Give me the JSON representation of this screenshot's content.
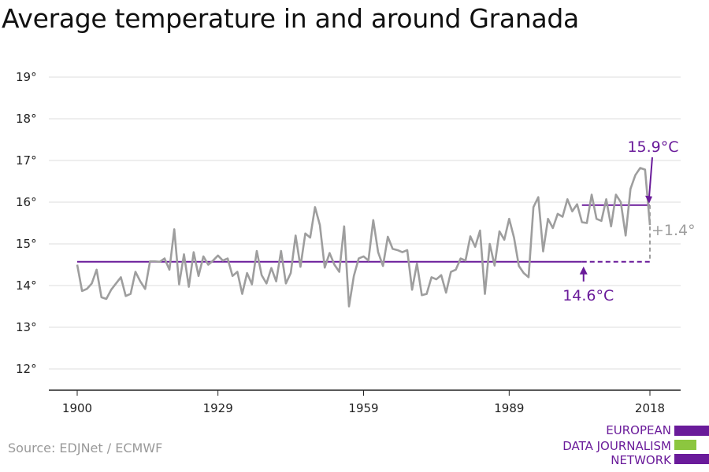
{
  "title": "Average temperature in and around Granada",
  "source": "Source: EDJNet / ECMWF",
  "logo": {
    "lines": [
      "EUROPEAN",
      "DATA JOURNALISM",
      "NETWORK"
    ],
    "colors": {
      "purple": "#6a1b9a",
      "green": "#8cc63f"
    }
  },
  "colors": {
    "series": "#9e9e9e",
    "mean": "#6a1b9a",
    "dashed_delta": "#9e9e9e"
  },
  "chart_data": {
    "type": "line",
    "title": "Average temperature in and around Granada",
    "xlabel": "",
    "ylabel": "",
    "xlim": [
      1900,
      2018
    ],
    "ylim": [
      12,
      19
    ],
    "x_ticks": [
      "1900",
      "1929",
      "1959",
      "1989",
      "2018"
    ],
    "y_ticks": [
      "19°",
      "18°",
      "17°",
      "16°",
      "15°",
      "14°",
      "13°",
      "12°"
    ],
    "grid": true,
    "series": [
      {
        "x": [
          1900,
          1901,
          1902,
          1903,
          1904,
          1905,
          1906,
          1907,
          1908,
          1909,
          1910,
          1911,
          1912,
          1913,
          1914,
          1915,
          1916,
          1917,
          1918,
          1919,
          1920,
          1921,
          1922,
          1923,
          1924,
          1925,
          1926,
          1927,
          1928,
          1929,
          1930,
          1931,
          1932,
          1933,
          1934,
          1935,
          1936,
          1937,
          1938,
          1939,
          1940,
          1941,
          1942,
          1943,
          1944,
          1945,
          1946,
          1947,
          1948,
          1949,
          1950,
          1951,
          1952,
          1953,
          1954,
          1955,
          1956,
          1957,
          1958,
          1959,
          1960,
          1961,
          1962,
          1963,
          1964,
          1965,
          1966,
          1967,
          1968,
          1969,
          1970,
          1971,
          1972,
          1973,
          1974,
          1975,
          1976,
          1977,
          1978,
          1979,
          1980,
          1981,
          1982,
          1983,
          1984,
          1985,
          1986,
          1987,
          1988,
          1989,
          1990,
          1991,
          1992,
          1993,
          1994,
          1995,
          1996,
          1997,
          1998,
          1999,
          2000,
          2001,
          2002,
          2003,
          2004,
          2005,
          2006,
          2007,
          2008,
          2009,
          2010,
          2011,
          2012,
          2013,
          2014,
          2015,
          2016,
          2017,
          2018
        ],
        "values": [
          14.5,
          13.87,
          13.92,
          14.05,
          14.38,
          13.72,
          13.68,
          13.9,
          14.05,
          14.2,
          13.75,
          13.8,
          14.33,
          14.1,
          13.92,
          14.58,
          14.58,
          14.57,
          14.65,
          14.38,
          15.35,
          14.03,
          14.75,
          13.97,
          14.8,
          14.23,
          14.7,
          14.5,
          14.6,
          14.72,
          14.6,
          14.65,
          14.23,
          14.33,
          13.8,
          14.3,
          14.03,
          14.83,
          14.25,
          14.05,
          14.42,
          14.1,
          14.83,
          14.05,
          14.3,
          15.2,
          14.45,
          15.25,
          15.15,
          15.88,
          15.45,
          14.43,
          14.78,
          14.5,
          14.33,
          15.42,
          13.5,
          14.23,
          14.65,
          14.7,
          14.6,
          15.57,
          14.8,
          14.47,
          15.17,
          14.88,
          14.85,
          14.8,
          14.85,
          13.9,
          14.53,
          13.77,
          13.8,
          14.2,
          14.15,
          14.25,
          13.83,
          14.33,
          14.38,
          14.65,
          14.6,
          15.18,
          14.93,
          15.32,
          13.8,
          15.0,
          14.48,
          15.3,
          15.1,
          15.6,
          15.15,
          14.47,
          14.3,
          14.2,
          15.88,
          16.12,
          14.82,
          15.6,
          15.38,
          15.72,
          15.65,
          16.07,
          15.78,
          15.95,
          15.52,
          15.5,
          16.18,
          15.6,
          15.55,
          16.07,
          15.42,
          16.18,
          16.0,
          15.2,
          16.32,
          16.65,
          16.82,
          16.78,
          15.45
        ]
      }
    ],
    "reference_lines": [
      {
        "label": "14.6°C",
        "value": 14.57,
        "x_start": 1900,
        "x_end": 2018
      },
      {
        "label": "15.9°C",
        "value": 15.93,
        "x_start": 2004,
        "x_end": 2018
      }
    ],
    "annotations": [
      {
        "text": "15.9°C",
        "x": 2018,
        "y": 15.93
      },
      {
        "text": "14.6°C",
        "x": 2004,
        "y": 14.57
      },
      {
        "text": "+1.4°",
        "x": 2018,
        "y": 15.25
      }
    ]
  }
}
